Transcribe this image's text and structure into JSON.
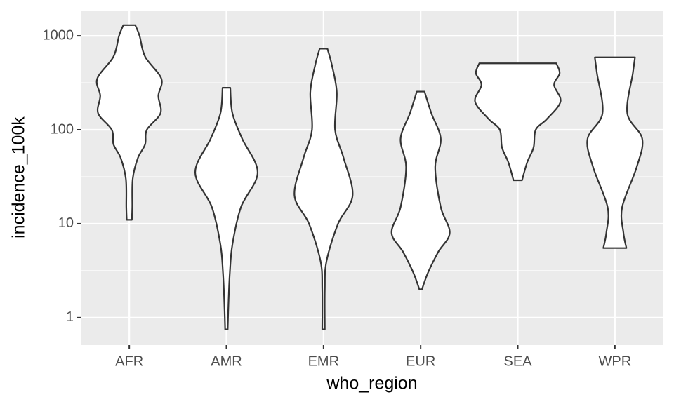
{
  "chart_data": {
    "type": "violin",
    "x_label": "who_region",
    "y_label": "incidence_100k",
    "categories": [
      "AFR",
      "AMR",
      "EMR",
      "EUR",
      "SEA",
      "WPR"
    ],
    "violins": [
      {
        "y": [
          1300,
          1000,
          600,
          350,
          230,
          150,
          100,
          70,
          50,
          30,
          15,
          11
        ],
        "density": [
          0.14,
          0.24,
          0.37,
          0.75,
          0.68,
          0.73,
          0.41,
          0.37,
          0.2,
          0.08,
          0.07,
          0.06
        ]
      },
      {
        "y": [
          280,
          150,
          80,
          35,
          15,
          6,
          3,
          1.5,
          0.75
        ],
        "density": [
          0.09,
          0.14,
          0.37,
          0.73,
          0.34,
          0.14,
          0.08,
          0.05,
          0.03
        ]
      },
      {
        "y": [
          730,
          500,
          250,
          100,
          50,
          20,
          10,
          4,
          2,
          0.75
        ],
        "density": [
          0.09,
          0.19,
          0.31,
          0.27,
          0.47,
          0.68,
          0.34,
          0.07,
          0.03,
          0.03
        ]
      },
      {
        "y": [
          255,
          150,
          80,
          40,
          15,
          8,
          5,
          3,
          2
        ],
        "density": [
          0.09,
          0.25,
          0.47,
          0.34,
          0.47,
          0.68,
          0.41,
          0.17,
          0.03
        ]
      },
      {
        "y": [
          510,
          400,
          300,
          200,
          130,
          100,
          65,
          45,
          29
        ],
        "density": [
          0.9,
          0.98,
          0.85,
          1.0,
          0.68,
          0.42,
          0.37,
          0.22,
          0.1
        ]
      },
      {
        "y": [
          590,
          400,
          150,
          80,
          40,
          15,
          8,
          5.5
        ],
        "density": [
          0.47,
          0.42,
          0.29,
          0.64,
          0.51,
          0.17,
          0.2,
          0.27
        ]
      }
    ],
    "ylim": [
      0.51,
      1860
    ],
    "yticks": [
      1,
      10,
      100,
      1000
    ],
    "log_y": true,
    "grid": true,
    "panel_color": "#ebebeb",
    "fill": "#ffffff",
    "line_color": "#333333"
  }
}
